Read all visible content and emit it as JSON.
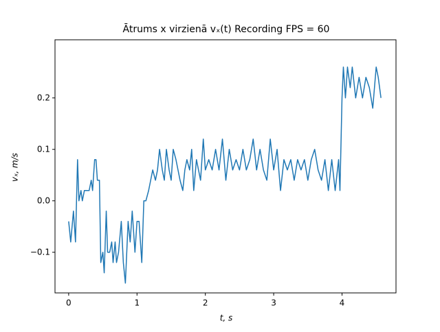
{
  "chart_data": {
    "type": "line",
    "title": "Ātrums x virzienā vₓ(t) Recording FPS = 60",
    "x_label": "t, s",
    "y_label": "vₓ, m/s",
    "x": [
      0.0,
      0.03,
      0.07,
      0.1,
      0.13,
      0.15,
      0.18,
      0.2,
      0.23,
      0.27,
      0.3,
      0.33,
      0.35,
      0.38,
      0.4,
      0.42,
      0.45,
      0.47,
      0.5,
      0.52,
      0.55,
      0.57,
      0.6,
      0.63,
      0.65,
      0.68,
      0.7,
      0.73,
      0.77,
      0.8,
      0.83,
      0.87,
      0.9,
      0.93,
      0.97,
      1.0,
      1.03,
      1.07,
      1.1,
      1.13,
      1.17,
      1.2,
      1.23,
      1.27,
      1.3,
      1.33,
      1.37,
      1.4,
      1.43,
      1.47,
      1.5,
      1.53,
      1.57,
      1.6,
      1.63,
      1.67,
      1.7,
      1.73,
      1.77,
      1.8,
      1.83,
      1.87,
      1.9,
      1.93,
      1.97,
      2.0,
      2.05,
      2.1,
      2.15,
      2.2,
      2.25,
      2.3,
      2.35,
      2.4,
      2.45,
      2.5,
      2.55,
      2.6,
      2.65,
      2.7,
      2.75,
      2.8,
      2.85,
      2.9,
      2.95,
      3.0,
      3.05,
      3.1,
      3.15,
      3.2,
      3.25,
      3.3,
      3.35,
      3.4,
      3.45,
      3.5,
      3.55,
      3.6,
      3.65,
      3.7,
      3.75,
      3.8,
      3.85,
      3.9,
      3.95,
      3.97,
      4.0,
      4.02,
      4.05,
      4.08,
      4.12,
      4.15,
      4.2,
      4.25,
      4.3,
      4.35,
      4.4,
      4.45,
      4.5,
      4.53,
      4.57
    ],
    "series": [
      {
        "name": "vx",
        "color": "#1f77b4",
        "values": [
          -0.04,
          -0.08,
          -0.02,
          -0.08,
          0.08,
          0.0,
          0.02,
          0.0,
          0.02,
          0.02,
          0.02,
          0.04,
          0.02,
          0.08,
          0.08,
          0.04,
          0.04,
          -0.12,
          -0.1,
          -0.14,
          -0.02,
          -0.1,
          -0.1,
          -0.08,
          -0.12,
          -0.08,
          -0.12,
          -0.1,
          -0.04,
          -0.12,
          -0.16,
          -0.04,
          -0.08,
          -0.02,
          -0.1,
          -0.04,
          -0.04,
          -0.12,
          0.0,
          0.0,
          0.02,
          0.04,
          0.06,
          0.04,
          0.06,
          0.1,
          0.06,
          0.04,
          0.1,
          0.06,
          0.04,
          0.1,
          0.08,
          0.06,
          0.04,
          0.02,
          0.06,
          0.08,
          0.06,
          0.1,
          0.02,
          0.08,
          0.06,
          0.04,
          0.12,
          0.06,
          0.08,
          0.06,
          0.1,
          0.06,
          0.12,
          0.04,
          0.1,
          0.06,
          0.08,
          0.06,
          0.1,
          0.06,
          0.08,
          0.12,
          0.06,
          0.1,
          0.06,
          0.04,
          0.12,
          0.06,
          0.1,
          0.02,
          0.08,
          0.06,
          0.08,
          0.04,
          0.08,
          0.06,
          0.08,
          0.04,
          0.08,
          0.1,
          0.06,
          0.04,
          0.08,
          0.02,
          0.08,
          0.02,
          0.08,
          0.02,
          0.2,
          0.26,
          0.2,
          0.26,
          0.22,
          0.26,
          0.2,
          0.24,
          0.2,
          0.24,
          0.22,
          0.18,
          0.26,
          0.24,
          0.2
        ]
      }
    ],
    "xlim": [
      -0.2,
      4.79
    ],
    "ylim": [
      -0.179,
      0.313
    ],
    "xticks": [
      0,
      1,
      2,
      3,
      4
    ],
    "yticks": [
      {
        "value": -0.1,
        "label": "−0.1"
      },
      {
        "value": 0,
        "label": "0.0"
      },
      {
        "value": 0.1,
        "label": "0.1"
      },
      {
        "value": 0.2,
        "label": "0.2"
      }
    ]
  }
}
